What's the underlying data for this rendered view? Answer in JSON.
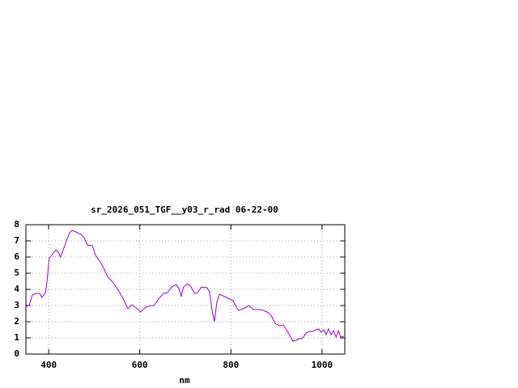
{
  "chart_data": {
    "type": "line",
    "title": "sr_2026_051_TGF__y03_r_rad 06-22-00",
    "x_label": "nm",
    "x": [
      350,
      357,
      364,
      373,
      380,
      385,
      393,
      396,
      401,
      409,
      416,
      421,
      426,
      432,
      439,
      446,
      451,
      460,
      471,
      478,
      485,
      496,
      503,
      513,
      521,
      529,
      542,
      553,
      560,
      568,
      574,
      583,
      592,
      602,
      613,
      624,
      631,
      641,
      652,
      661,
      670,
      680,
      686,
      691,
      696,
      705,
      712,
      720,
      727,
      735,
      748,
      753,
      759,
      764,
      769,
      775,
      783,
      794,
      805,
      812,
      817,
      830,
      840,
      849,
      862,
      872,
      883,
      890,
      897,
      906,
      915,
      922,
      929,
      936,
      943,
      950,
      958,
      965,
      972,
      979,
      986,
      993,
      998,
      1004,
      1009,
      1014,
      1020,
      1025,
      1031,
      1036,
      1041,
      1048
    ],
    "values": [
      2.95,
      3.0,
      3.65,
      3.75,
      3.75,
      3.5,
      3.8,
      4.4,
      5.9,
      6.2,
      6.45,
      6.3,
      6.0,
      6.45,
      7.0,
      7.5,
      7.65,
      7.55,
      7.4,
      7.2,
      6.75,
      6.7,
      6.1,
      5.7,
      5.3,
      4.8,
      4.4,
      3.95,
      3.6,
      3.15,
      2.8,
      3.05,
      2.85,
      2.6,
      2.9,
      3.0,
      3.0,
      3.4,
      3.75,
      3.8,
      4.15,
      4.3,
      4.05,
      3.55,
      4.15,
      4.35,
      4.2,
      3.75,
      3.8,
      4.15,
      4.1,
      3.85,
      2.65,
      2.0,
      3.2,
      3.7,
      3.6,
      3.45,
      3.3,
      2.9,
      2.7,
      2.85,
      3.0,
      2.75,
      2.75,
      2.7,
      2.55,
      2.3,
      1.9,
      1.75,
      1.8,
      1.5,
      1.15,
      0.8,
      0.85,
      0.95,
      1.0,
      1.3,
      1.4,
      1.4,
      1.5,
      1.55,
      1.35,
      1.5,
      1.2,
      1.55,
      1.2,
      1.45,
      1.05,
      1.45,
      1.05,
      1.1
    ],
    "color": "#9400d3",
    "xlim": [
      350,
      1050
    ],
    "xticks": [
      400,
      600,
      800,
      1000
    ],
    "ylim": [
      0,
      8
    ],
    "yticks": [
      0,
      1,
      2,
      3,
      4,
      5,
      6,
      7,
      8
    ],
    "grid": true
  }
}
